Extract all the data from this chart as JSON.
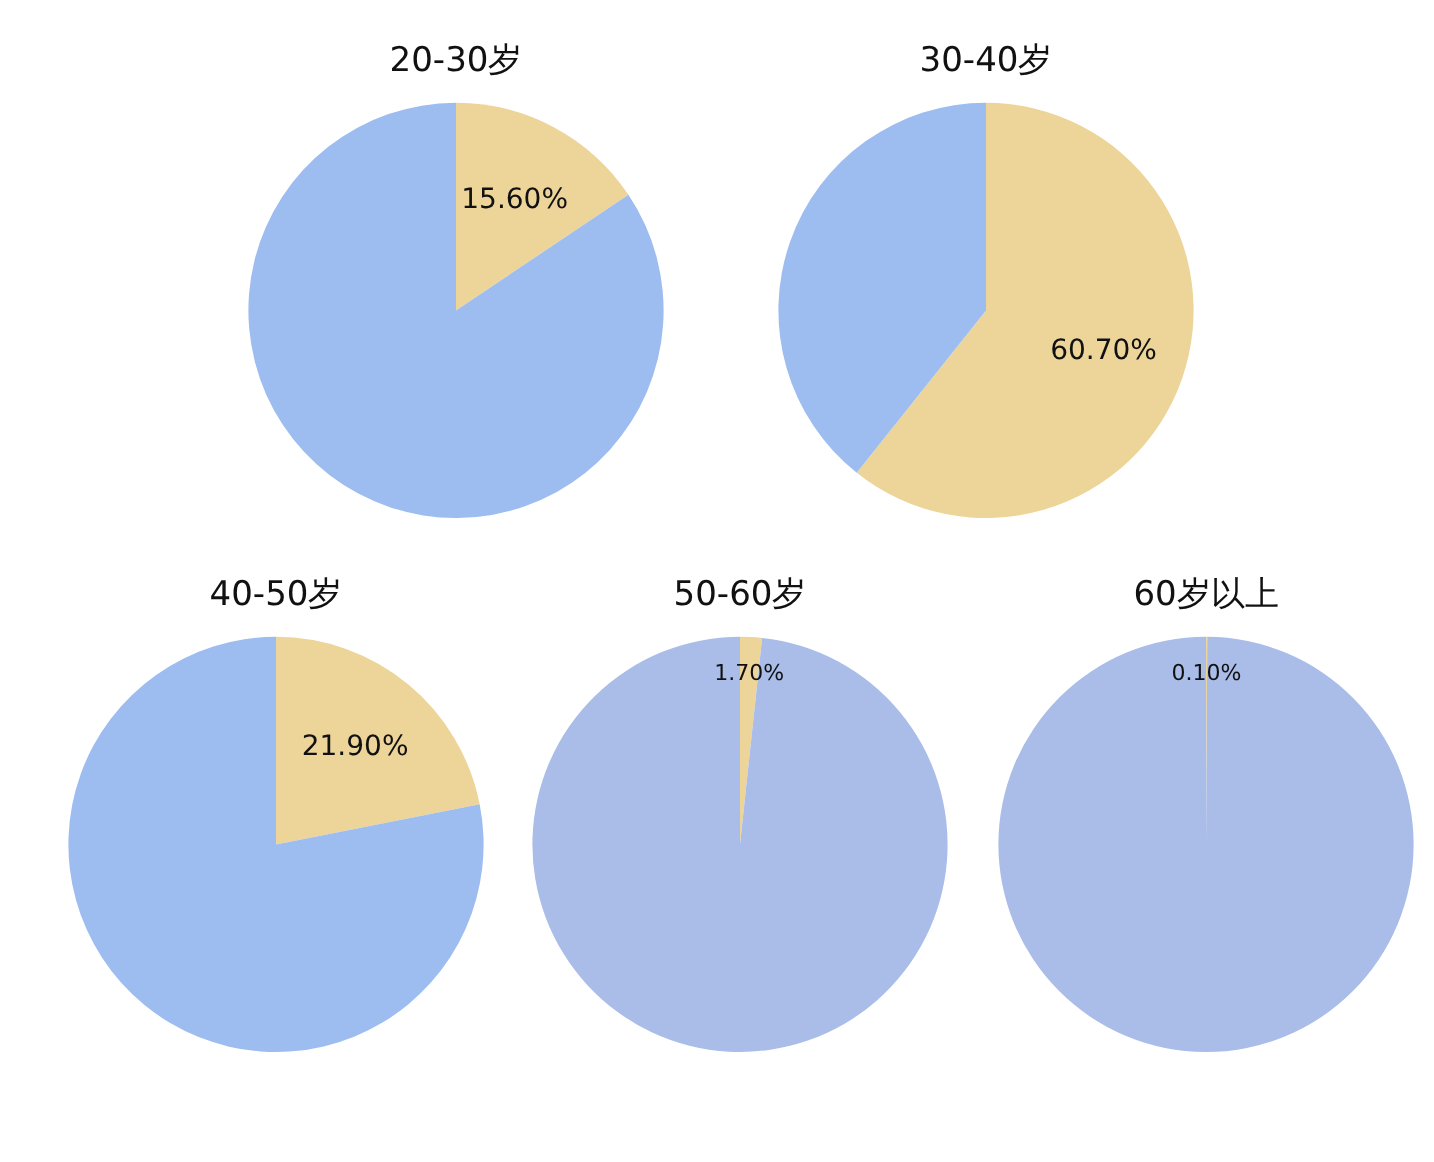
{
  "chart_data": [
    {
      "type": "pie",
      "title": "20-30岁",
      "categories": [
        null,
        null
      ],
      "values": [
        15.6,
        84.4
      ],
      "colors": [
        "#edd59a",
        "#9dbcf0"
      ],
      "value_labels": [
        "15.60%",
        null
      ],
      "legend": false
    },
    {
      "type": "pie",
      "title": "30-40岁",
      "categories": [
        null,
        null
      ],
      "values": [
        60.7,
        39.3
      ],
      "colors": [
        "#edd59a",
        "#9dbcf0"
      ],
      "value_labels": [
        "60.70%",
        null
      ],
      "legend": false
    },
    {
      "type": "pie",
      "title": "40-50岁",
      "categories": [
        null,
        null
      ],
      "values": [
        21.9,
        78.1
      ],
      "colors": [
        "#edd59a",
        "#9dbcf0"
      ],
      "value_labels": [
        "21.90%",
        null
      ],
      "legend": false
    },
    {
      "type": "pie",
      "title": "50-60岁",
      "categories": [
        null,
        null
      ],
      "values": [
        1.7,
        98.3
      ],
      "colors": [
        "#edd59a",
        "#a9bde8"
      ],
      "value_labels": [
        "1.70%",
        null
      ],
      "legend": false
    },
    {
      "type": "pie",
      "title": "60岁以上",
      "categories": [
        null,
        null
      ],
      "values": [
        0.1,
        99.9
      ],
      "colors": [
        "#edd59a",
        "#a9bde8"
      ],
      "value_labels": [
        "0.10%",
        null
      ],
      "legend": false
    }
  ]
}
